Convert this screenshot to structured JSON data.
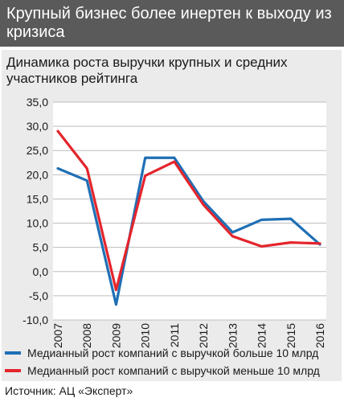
{
  "header": {
    "title": "Крупный бизнес более инертен к выходу из кризиса"
  },
  "source": "Источник: АЦ «Эксперт»",
  "chart_data": {
    "type": "line",
    "title": "Динамика роста выручки крупных и средних участников рейтинга",
    "xlabel": "",
    "ylabel": "",
    "categories": [
      "2007",
      "2008",
      "2009",
      "2010",
      "2011",
      "2012",
      "2013",
      "2014",
      "2015",
      "2016"
    ],
    "ylim": [
      -10,
      35
    ],
    "yticks": [
      "35,0",
      "30,0",
      "25,0",
      "20,0",
      "15,0",
      "10,0",
      "5,0",
      "0,0",
      "-5,0",
      "-10,0"
    ],
    "ytick_values": [
      35,
      30,
      25,
      20,
      15,
      10,
      5,
      0,
      -5,
      -10
    ],
    "grid": true,
    "legend_position": "bottom",
    "series": [
      {
        "name": "Медианный рост компаний с выручкой больше 10 млрд",
        "color": "#1f6fb5",
        "values": [
          21.3,
          18.8,
          -6.8,
          23.5,
          23.5,
          14.5,
          8.1,
          10.7,
          10.9,
          5.6
        ]
      },
      {
        "name": "Медианный рост компаний с выручкой меньше 10 млрд",
        "color": "#e4252c",
        "values": [
          29.0,
          21.3,
          -3.8,
          19.8,
          22.7,
          13.8,
          7.3,
          5.2,
          6.0,
          5.8
        ]
      }
    ]
  }
}
